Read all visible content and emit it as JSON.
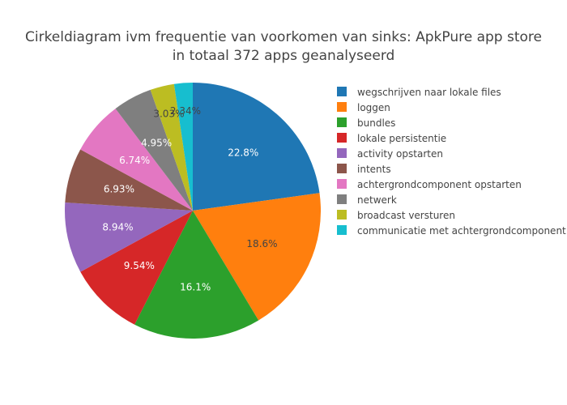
{
  "chart_data": {
    "type": "pie",
    "title_lines": [
      "Cirkeldiagram ivm frequentie van voorkomen van sinks: ApkPure app store",
      "in totaal 372 apps geanalyseerd"
    ],
    "slices": [
      {
        "label": "wegschrijven naar lokale files",
        "value": 22.8,
        "display": "22.8%",
        "color": "#1f77b4",
        "text_color": "#ffffff"
      },
      {
        "label": "loggen",
        "value": 18.6,
        "display": "18.6%",
        "color": "#ff7f0e",
        "text_color": "#444444"
      },
      {
        "label": "bundles",
        "value": 16.1,
        "display": "16.1%",
        "color": "#2ca02c",
        "text_color": "#ffffff"
      },
      {
        "label": "lokale persistentie",
        "value": 9.54,
        "display": "9.54%",
        "color": "#d62728",
        "text_color": "#ffffff"
      },
      {
        "label": "activity opstarten",
        "value": 8.94,
        "display": "8.94%",
        "color": "#9467bd",
        "text_color": "#ffffff"
      },
      {
        "label": "intents",
        "value": 6.93,
        "display": "6.93%",
        "color": "#8c564b",
        "text_color": "#ffffff"
      },
      {
        "label": "achtergrondcomponent opstarten",
        "value": 6.74,
        "display": "6.74%",
        "color": "#e377c2",
        "text_color": "#ffffff"
      },
      {
        "label": "netwerk",
        "value": 4.95,
        "display": "4.95%",
        "color": "#7f7f7f",
        "text_color": "#ffffff"
      },
      {
        "label": "broadcast versturen",
        "value": 3.03,
        "display": "3.03%",
        "color": "#bcbd22",
        "text_color": "#444444"
      },
      {
        "label": "communicatie met achtergrondcomponent",
        "value": 2.34,
        "display": "2.34%",
        "color": "#17becf",
        "text_color": "#444444"
      }
    ],
    "direction": "clockwise",
    "start": "top",
    "legend_position": "right"
  }
}
